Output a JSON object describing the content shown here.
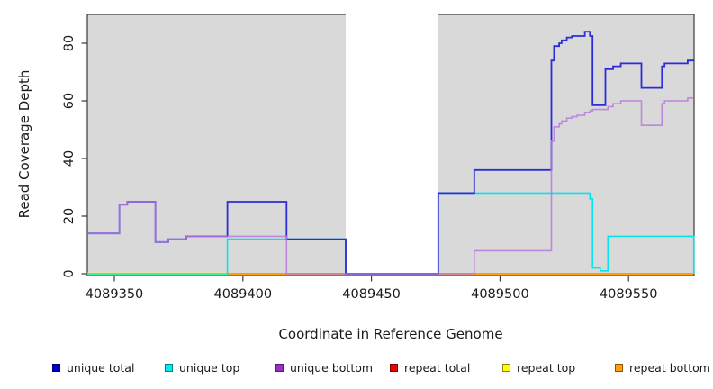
{
  "chart_data": {
    "type": "line",
    "subtype": "step-coverage",
    "title": "",
    "xlabel": "Coordinate in Reference Genome",
    "ylabel": "Read Coverage Depth",
    "xlim": [
      4089339.5,
      4089575.5
    ],
    "ylim": [
      0,
      90
    ],
    "x_ticks": [
      4089350,
      4089400,
      4089450,
      4089500,
      4089550
    ],
    "y_ticks": [
      0,
      20,
      40,
      60,
      80
    ],
    "grid": false,
    "panel_background": "#d9d9d9",
    "panel_border_color": "#3a3a3a",
    "mask_band": {
      "x_start": 4089440,
      "x_end": 4089476,
      "color": "#ffffff"
    },
    "legend_position": "bottom",
    "series": [
      {
        "name": "repeat total",
        "color": "#e8000d",
        "legend_color": "#ee0000",
        "width": 1.6,
        "opacity": 1,
        "steps": [
          [
            4089339.5,
            0
          ]
        ],
        "end": 4089575.4,
        "end_drop": false
      },
      {
        "name": "repeat top",
        "color": "#ffff00",
        "legend_color": "#ffff00",
        "width": 2.4,
        "opacity": 1,
        "steps": [
          [
            4089339.5,
            0
          ]
        ],
        "end": 4089394,
        "end_drop": false
      },
      {
        "name": "repeat bottom",
        "color": "#ff9d0a",
        "legend_color": "#ff9d0a",
        "width": 2.0,
        "opacity": 1,
        "steps": [
          [
            4089394,
            0
          ]
        ],
        "end": 4089575.4,
        "end_drop": false
      },
      {
        "name": "unique top",
        "color": "#00e5ee",
        "legend_color": "#00eeee",
        "width": 1.6,
        "opacity": 1,
        "steps": [
          [
            4089339.5,
            0
          ],
          [
            4089394,
            12
          ],
          [
            4089440,
            0
          ],
          [
            4089476,
            28
          ],
          [
            4089535,
            26
          ],
          [
            4089536,
            2
          ],
          [
            4089539,
            1
          ],
          [
            4089542,
            13
          ]
        ],
        "end": 4089575.4,
        "end_drop": true
      },
      {
        "name": "unique total",
        "color": "#2c2cd8",
        "legend_color": "#0000cc",
        "width": 1.8,
        "opacity": 1,
        "steps": [
          [
            4089339.5,
            14
          ],
          [
            4089352,
            24
          ],
          [
            4089355,
            25
          ],
          [
            4089366,
            11
          ],
          [
            4089371,
            12
          ],
          [
            4089378,
            13
          ],
          [
            4089394,
            25
          ],
          [
            4089417,
            12
          ],
          [
            4089440,
            0
          ],
          [
            4089476,
            28
          ],
          [
            4089490,
            36
          ],
          [
            4089520,
            74
          ],
          [
            4089521,
            79
          ],
          [
            4089523,
            80
          ],
          [
            4089524,
            81
          ],
          [
            4089526,
            82
          ],
          [
            4089528,
            82.5
          ],
          [
            4089533,
            84
          ],
          [
            4089535,
            82.5
          ],
          [
            4089536,
            58.5
          ],
          [
            4089541,
            71
          ],
          [
            4089544,
            72
          ],
          [
            4089547,
            73
          ],
          [
            4089555,
            64.5
          ],
          [
            4089563,
            72
          ],
          [
            4089564,
            73
          ],
          [
            4089573,
            74
          ]
        ],
        "end": 4089575.4,
        "end_drop": false
      },
      {
        "name": "unique bottom",
        "color": "#b678de",
        "legend_color": "#9932cc",
        "width": 1.6,
        "opacity": 0.85,
        "steps": [
          [
            4089339.5,
            14
          ],
          [
            4089352,
            24
          ],
          [
            4089355,
            25
          ],
          [
            4089366,
            11
          ],
          [
            4089371,
            12
          ],
          [
            4089378,
            13
          ],
          [
            4089417,
            0
          ],
          [
            4089490,
            8
          ],
          [
            4089520,
            46
          ],
          [
            4089521,
            51
          ],
          [
            4089523,
            52
          ],
          [
            4089524,
            53
          ],
          [
            4089526,
            54
          ],
          [
            4089528,
            54.5
          ],
          [
            4089530,
            55
          ],
          [
            4089533,
            56
          ],
          [
            4089535,
            56.5
          ],
          [
            4089536,
            57
          ],
          [
            4089542,
            58
          ],
          [
            4089544,
            59
          ],
          [
            4089547,
            60
          ],
          [
            4089555,
            51.5
          ],
          [
            4089563,
            59
          ],
          [
            4089564,
            60
          ],
          [
            4089573,
            61
          ]
        ],
        "end": 4089575.4,
        "end_drop": false
      }
    ],
    "legend": [
      {
        "label": "unique total"
      },
      {
        "label": "unique top"
      },
      {
        "label": "unique bottom"
      },
      {
        "label": "repeat total"
      },
      {
        "label": "repeat top"
      },
      {
        "label": "repeat bottom"
      }
    ],
    "legend_series_order": [
      "unique total",
      "unique top",
      "unique bottom",
      "repeat total",
      "repeat top",
      "repeat bottom"
    ]
  }
}
